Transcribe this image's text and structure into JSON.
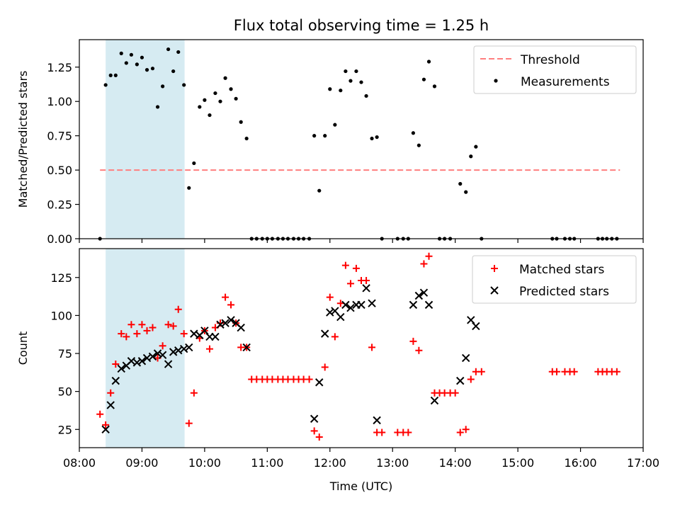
{
  "title": "Flux total observing time = 1.25 h",
  "xlabel": "Time (UTC)",
  "colors": {
    "threshold": "#ff7f7f",
    "measurement": "#000000",
    "matched": "#ff0000",
    "predicted": "#000000",
    "highlight": "#add8e6"
  },
  "chart_data": [
    {
      "type": "scatter",
      "ylabel": "Matched/Predicted stars",
      "xlim": [
        8.0,
        17.0
      ],
      "ylim": [
        0.0,
        1.45
      ],
      "yticks": [
        0.0,
        0.25,
        0.5,
        0.75,
        1.0,
        1.25
      ],
      "ytick_labels": [
        "0.00",
        "0.25",
        "0.50",
        "0.75",
        "1.00",
        "1.25"
      ],
      "legend_position": "top-right",
      "shaded_span": [
        8.42,
        9.68
      ],
      "threshold": {
        "name": "Threshold",
        "value": 0.5,
        "x_range": [
          8.33,
          16.63
        ]
      },
      "series": [
        {
          "name": "Measurements",
          "x": [
            8.33,
            8.42,
            8.5,
            8.58,
            8.67,
            8.75,
            8.83,
            8.92,
            9.0,
            9.08,
            9.17,
            9.25,
            9.33,
            9.42,
            9.5,
            9.58,
            9.67,
            9.75,
            9.83,
            9.92,
            10.0,
            10.08,
            10.17,
            10.25,
            10.33,
            10.42,
            10.5,
            10.58,
            10.67,
            10.75,
            10.83,
            10.92,
            11.0,
            11.08,
            11.17,
            11.25,
            11.33,
            11.42,
            11.5,
            11.58,
            11.67,
            11.75,
            11.83,
            11.92,
            12.0,
            12.08,
            12.17,
            12.25,
            12.33,
            12.42,
            12.5,
            12.58,
            12.67,
            12.75,
            12.83,
            13.08,
            13.17,
            13.25,
            13.33,
            13.42,
            13.5,
            13.58,
            13.67,
            13.75,
            13.83,
            13.92,
            14.08,
            14.17,
            14.25,
            14.33,
            14.42,
            15.55,
            15.62,
            15.75,
            15.83,
            15.9,
            16.28,
            16.35,
            16.42,
            16.5,
            16.58
          ],
          "y": [
            0.0,
            1.12,
            1.19,
            1.19,
            1.35,
            1.28,
            1.34,
            1.27,
            1.32,
            1.23,
            1.24,
            0.96,
            1.11,
            1.38,
            1.22,
            1.36,
            1.12,
            0.37,
            0.55,
            0.96,
            1.01,
            0.9,
            1.06,
            1.0,
            1.17,
            1.09,
            1.02,
            0.85,
            0.73,
            0.0,
            0.0,
            0.0,
            0.0,
            0.0,
            0.0,
            0.0,
            0.0,
            0.0,
            0.0,
            0.0,
            0.0,
            0.75,
            0.35,
            0.75,
            1.09,
            0.83,
            1.08,
            1.22,
            1.15,
            1.22,
            1.14,
            1.04,
            0.73,
            0.74,
            0.0,
            0.0,
            0.0,
            0.0,
            0.77,
            0.68,
            1.16,
            1.29,
            1.11,
            0.0,
            0.0,
            0.0,
            0.4,
            0.34,
            0.6,
            0.67,
            0.0,
            0.0,
            0.0,
            0.0,
            0.0,
            0.0,
            0.0,
            0.0,
            0.0,
            0.0,
            0.0
          ]
        }
      ]
    },
    {
      "type": "scatter",
      "ylabel": "Count",
      "xlim": [
        8.0,
        17.0
      ],
      "ylim": [
        13,
        144
      ],
      "yticks": [
        25,
        50,
        75,
        100,
        125
      ],
      "ytick_labels": [
        "25",
        "50",
        "75",
        "100",
        "125"
      ],
      "xticks": [
        8,
        9,
        10,
        11,
        12,
        13,
        14,
        15,
        16,
        17
      ],
      "xtick_labels": [
        "08:00",
        "09:00",
        "10:00",
        "11:00",
        "12:00",
        "13:00",
        "14:00",
        "15:00",
        "16:00",
        "17:00"
      ],
      "legend_position": "top-right",
      "shaded_span": [
        8.42,
        9.68
      ],
      "series": [
        {
          "name": "Matched stars",
          "x": [
            8.33,
            8.42,
            8.5,
            8.58,
            8.67,
            8.75,
            8.83,
            8.92,
            9.0,
            9.08,
            9.17,
            9.25,
            9.33,
            9.42,
            9.5,
            9.58,
            9.67,
            9.75,
            9.83,
            9.92,
            10.0,
            10.08,
            10.17,
            10.25,
            10.33,
            10.42,
            10.5,
            10.58,
            10.67,
            10.75,
            10.83,
            10.92,
            11.0,
            11.08,
            11.17,
            11.25,
            11.33,
            11.42,
            11.5,
            11.58,
            11.67,
            11.75,
            11.83,
            11.92,
            12.0,
            12.08,
            12.17,
            12.25,
            12.33,
            12.42,
            12.5,
            12.58,
            12.67,
            12.75,
            12.83,
            13.08,
            13.17,
            13.25,
            13.33,
            13.42,
            13.5,
            13.58,
            13.67,
            13.75,
            13.83,
            13.92,
            14.0,
            14.08,
            14.17,
            14.25,
            14.33,
            14.42,
            15.55,
            15.62,
            15.75,
            15.83,
            15.9,
            16.28,
            16.35,
            16.42,
            16.5,
            16.58
          ],
          "y": [
            35,
            28,
            49,
            68,
            88,
            86,
            94,
            88,
            94,
            90,
            92,
            72,
            80,
            94,
            93,
            104,
            88,
            29,
            49,
            85,
            90,
            78,
            92,
            95,
            112,
            107,
            95,
            79,
            79,
            58,
            58,
            58,
            58,
            58,
            58,
            58,
            58,
            58,
            58,
            58,
            58,
            24,
            20,
            66,
            112,
            86,
            108,
            133,
            121,
            131,
            123,
            123,
            79,
            23,
            23,
            23,
            23,
            23,
            83,
            77,
            134,
            139,
            49,
            49,
            49,
            49,
            49,
            23,
            25,
            58,
            63,
            63,
            63,
            63,
            63,
            63,
            63,
            63,
            63,
            63,
            63,
            63
          ]
        },
        {
          "name": "Predicted stars",
          "x": [
            8.42,
            8.5,
            8.58,
            8.67,
            8.75,
            8.83,
            8.92,
            9.0,
            9.08,
            9.17,
            9.25,
            9.33,
            9.42,
            9.5,
            9.58,
            9.67,
            9.75,
            9.83,
            9.92,
            10.0,
            10.08,
            10.17,
            10.25,
            10.33,
            10.42,
            10.5,
            10.58,
            10.67,
            11.75,
            11.83,
            11.92,
            12.0,
            12.08,
            12.17,
            12.25,
            12.33,
            12.42,
            12.5,
            12.58,
            12.67,
            12.75,
            13.33,
            13.42,
            13.5,
            13.58,
            13.67,
            14.08,
            14.17,
            14.25,
            14.33
          ],
          "y": [
            25,
            41,
            57,
            65,
            67,
            70,
            69,
            70,
            72,
            73,
            75,
            74,
            68,
            76,
            77,
            78,
            79,
            88,
            87,
            90,
            86,
            86,
            94,
            95,
            97,
            95,
            92,
            79,
            32,
            56,
            88,
            102,
            103,
            99,
            107,
            105,
            107,
            107,
            118,
            108,
            31,
            107,
            113,
            115,
            107,
            44,
            57,
            72,
            97,
            93
          ]
        }
      ]
    }
  ]
}
